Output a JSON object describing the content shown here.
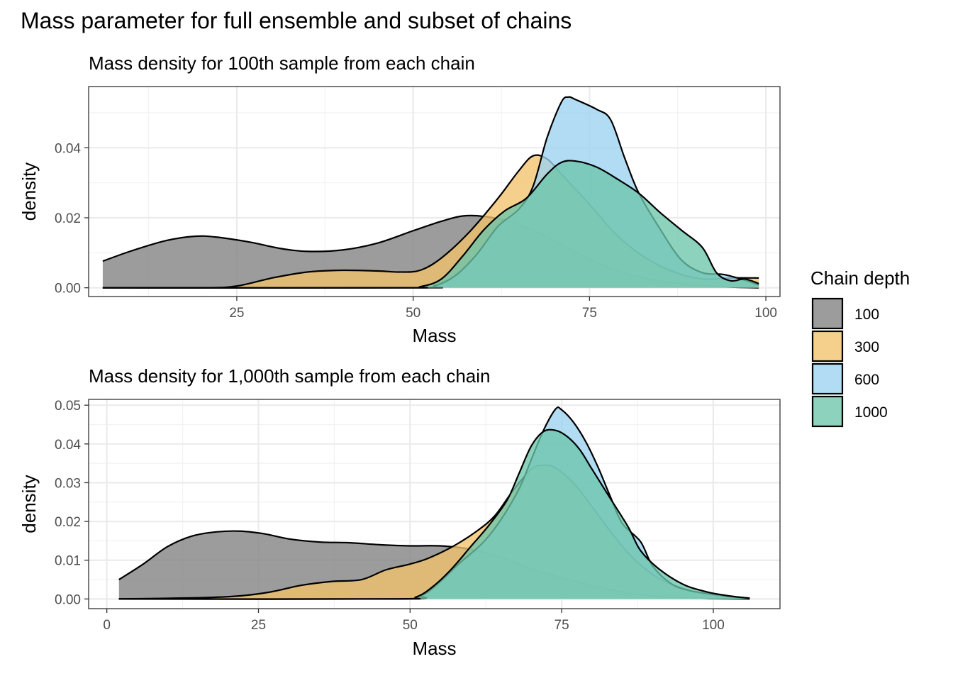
{
  "figure": {
    "title": "Mass parameter for full ensemble and subset of chains"
  },
  "legend": {
    "title": "Chain depth",
    "entries": [
      {
        "label": "100",
        "color": "#808080"
      },
      {
        "label": "300",
        "color": "#F2C36B"
      },
      {
        "label": "600",
        "color": "#9CD2F0"
      },
      {
        "label": "1000",
        "color": "#6CC5AA"
      }
    ]
  },
  "chart_data": [
    {
      "type": "area",
      "subtype": "density",
      "title": "Mass density for 100th sample from each chain",
      "xlabel": "Mass",
      "ylabel": "density",
      "xlim": [
        4,
        102
      ],
      "ylim": [
        -0.0025,
        0.0575
      ],
      "xticks": [
        25,
        50,
        75,
        100
      ],
      "xtick_labels": [
        "25",
        "50",
        "75",
        "100"
      ],
      "yticks": [
        0,
        0.02,
        0.04
      ],
      "ytick_labels": [
        "0.00",
        "0.02",
        "0.04"
      ],
      "grid": true,
      "series": [
        {
          "name": "100",
          "points": [
            [
              6,
              0.0076
            ],
            [
              10,
              0.0105
            ],
            [
              15,
              0.0135
            ],
            [
              19,
              0.0147
            ],
            [
              22,
              0.0145
            ],
            [
              27,
              0.013
            ],
            [
              31,
              0.0113
            ],
            [
              35,
              0.0104
            ],
            [
              40,
              0.0108
            ],
            [
              45,
              0.0128
            ],
            [
              50,
              0.0163
            ],
            [
              54,
              0.019
            ],
            [
              57,
              0.0205
            ],
            [
              60,
              0.0204
            ],
            [
              64,
              0.0188
            ],
            [
              68,
              0.0155
            ],
            [
              72,
              0.0113
            ],
            [
              76,
              0.0072
            ],
            [
              80,
              0.0042
            ],
            [
              85,
              0.002
            ],
            [
              90,
              0.0008
            ],
            [
              95,
              0.0002
            ],
            [
              99,
              0
            ]
          ]
        },
        {
          "name": "300",
          "points": [
            [
              6,
              0
            ],
            [
              20,
              0
            ],
            [
              25,
              0.0005
            ],
            [
              30,
              0.0028
            ],
            [
              35,
              0.0045
            ],
            [
              40,
              0.005
            ],
            [
              45,
              0.0048
            ],
            [
              48,
              0.0045
            ],
            [
              51,
              0.005
            ],
            [
              54,
              0.0085
            ],
            [
              58,
              0.016
            ],
            [
              62,
              0.0255
            ],
            [
              65,
              0.0335
            ],
            [
              67,
              0.0377
            ],
            [
              69,
              0.0368
            ],
            [
              71,
              0.0325
            ],
            [
              75,
              0.0238
            ],
            [
              79,
              0.0148
            ],
            [
              83,
              0.0085
            ],
            [
              87,
              0.0045
            ],
            [
              91,
              0.0025
            ],
            [
              95,
              0.0028
            ],
            [
              99,
              0.0028
            ]
          ]
        },
        {
          "name": "600",
          "points": [
            [
              6,
              0
            ],
            [
              50,
              0
            ],
            [
              53,
              0.0005
            ],
            [
              56,
              0.0035
            ],
            [
              59,
              0.0095
            ],
            [
              62,
              0.0175
            ],
            [
              65,
              0.0225
            ],
            [
              67,
              0.029
            ],
            [
              69,
              0.043
            ],
            [
              71,
              0.053
            ],
            [
              72,
              0.0545
            ],
            [
              73,
              0.0538
            ],
            [
              76,
              0.051
            ],
            [
              78,
              0.048
            ],
            [
              80,
              0.037
            ],
            [
              82,
              0.027
            ],
            [
              85,
              0.0168
            ],
            [
              88,
              0.008
            ],
            [
              91,
              0.0043
            ],
            [
              94,
              0.0038
            ],
            [
              97,
              0.0022
            ],
            [
              99,
              0.0008
            ]
          ]
        },
        {
          "name": "1000",
          "points": [
            [
              6,
              0
            ],
            [
              48,
              0
            ],
            [
              51,
              0.0003
            ],
            [
              54,
              0.0025
            ],
            [
              57,
              0.009
            ],
            [
              60,
              0.0165
            ],
            [
              63,
              0.022
            ],
            [
              66,
              0.0255
            ],
            [
              69,
              0.0325
            ],
            [
              71,
              0.0358
            ],
            [
              73,
              0.0362
            ],
            [
              76,
              0.0345
            ],
            [
              79,
              0.031
            ],
            [
              82,
              0.027
            ],
            [
              85,
              0.0215
            ],
            [
              88,
              0.0165
            ],
            [
              91,
              0.0115
            ],
            [
              93,
              0.0043
            ],
            [
              95,
              0.002
            ],
            [
              97,
              0.0025
            ],
            [
              99,
              0.0012
            ]
          ]
        }
      ]
    },
    {
      "type": "area",
      "subtype": "density",
      "title": "Mass density for 1,000th sample from each chain",
      "xlabel": "Mass",
      "ylabel": "density",
      "xlim": [
        -3,
        111
      ],
      "ylim": [
        -0.0025,
        0.0515
      ],
      "xticks": [
        0,
        25,
        50,
        75,
        100
      ],
      "xtick_labels": [
        "0",
        "25",
        "50",
        "75",
        "100"
      ],
      "yticks": [
        0,
        0.01,
        0.02,
        0.03,
        0.04,
        0.05
      ],
      "ytick_labels": [
        "0.00",
        "0.01",
        "0.02",
        "0.03",
        "0.04",
        "0.05"
      ],
      "grid": true,
      "series": [
        {
          "name": "100",
          "points": [
            [
              2,
              0.005
            ],
            [
              6,
              0.009
            ],
            [
              10,
              0.0135
            ],
            [
              14,
              0.0162
            ],
            [
              18,
              0.0173
            ],
            [
              22,
              0.0175
            ],
            [
              26,
              0.0168
            ],
            [
              30,
              0.0155
            ],
            [
              35,
              0.0147
            ],
            [
              40,
              0.0145
            ],
            [
              45,
              0.014
            ],
            [
              50,
              0.0137
            ],
            [
              55,
              0.0137
            ],
            [
              60,
              0.0128
            ],
            [
              65,
              0.0108
            ],
            [
              70,
              0.0078
            ],
            [
              75,
              0.0055
            ],
            [
              80,
              0.0035
            ],
            [
              85,
              0.0018
            ],
            [
              90,
              0.0008
            ],
            [
              95,
              0.0003
            ],
            [
              100,
              0.0001
            ],
            [
              106,
              0
            ]
          ]
        },
        {
          "name": "300",
          "points": [
            [
              2,
              0
            ],
            [
              15,
              0.0003
            ],
            [
              22,
              0.0008
            ],
            [
              27,
              0.0018
            ],
            [
              32,
              0.0035
            ],
            [
              37,
              0.0045
            ],
            [
              42,
              0.005
            ],
            [
              46,
              0.0075
            ],
            [
              50,
              0.009
            ],
            [
              53,
              0.0105
            ],
            [
              57,
              0.0135
            ],
            [
              61,
              0.0175
            ],
            [
              64,
              0.0215
            ],
            [
              67,
              0.028
            ],
            [
              70,
              0.0335
            ],
            [
              72,
              0.0345
            ],
            [
              74,
              0.0338
            ],
            [
              77,
              0.0298
            ],
            [
              80,
              0.0238
            ],
            [
              83,
              0.0175
            ],
            [
              86,
              0.0118
            ],
            [
              89,
              0.0075
            ],
            [
              92,
              0.0045
            ],
            [
              96,
              0.0022
            ],
            [
              100,
              0.001
            ],
            [
              106,
              0
            ]
          ]
        },
        {
          "name": "600",
          "points": [
            [
              2,
              0
            ],
            [
              48,
              0
            ],
            [
              52,
              0.001
            ],
            [
              55,
              0.0045
            ],
            [
              58,
              0.009
            ],
            [
              62,
              0.0145
            ],
            [
              65,
              0.0205
            ],
            [
              68,
              0.0285
            ],
            [
              70,
              0.036
            ],
            [
              72,
              0.0435
            ],
            [
              74,
              0.049
            ],
            [
              75,
              0.0488
            ],
            [
              77,
              0.0455
            ],
            [
              79,
              0.0405
            ],
            [
              81,
              0.034
            ],
            [
              83,
              0.0265
            ],
            [
              85,
              0.0195
            ],
            [
              88,
              0.0148
            ],
            [
              90,
              0.0085
            ],
            [
              93,
              0.004
            ],
            [
              96,
              0.0022
            ],
            [
              100,
              0.0012
            ],
            [
              103,
              0.0006
            ],
            [
              106,
              0.0002
            ]
          ]
        },
        {
          "name": "1000",
          "points": [
            [
              2,
              0
            ],
            [
              47,
              0
            ],
            [
              51,
              0.0005
            ],
            [
              54,
              0.0035
            ],
            [
              57,
              0.008
            ],
            [
              60,
              0.0135
            ],
            [
              63,
              0.019
            ],
            [
              66,
              0.0255
            ],
            [
              68,
              0.0325
            ],
            [
              70,
              0.0395
            ],
            [
              72,
              0.0432
            ],
            [
              74,
              0.0435
            ],
            [
              76,
              0.0418
            ],
            [
              78,
              0.0385
            ],
            [
              80,
              0.0335
            ],
            [
              83,
              0.026
            ],
            [
              86,
              0.0185
            ],
            [
              88,
              0.0125
            ],
            [
              91,
              0.0078
            ],
            [
              95,
              0.0038
            ],
            [
              99,
              0.0018
            ],
            [
              103,
              0.0007
            ],
            [
              106,
              0.0002
            ]
          ]
        }
      ]
    }
  ]
}
